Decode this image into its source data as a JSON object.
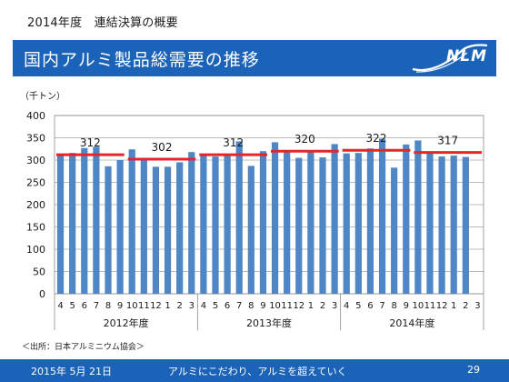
{
  "header": {
    "top_heading": "2014年度　連結決算の概要",
    "title": "国内アルミ製品総需要の推移",
    "logo_text": "NLM"
  },
  "footer": {
    "date": "2015年 5月 21日",
    "slogan": "アルミにこだわり、アルミを超えていく",
    "page_number": "29"
  },
  "source_note": "＜出所：日本アルミニウム協会＞",
  "colors": {
    "title_bar": "#1b63b8",
    "bar": "#4f86c6",
    "avg_line": "#e8242a"
  },
  "chart_data": {
    "type": "bar",
    "title": "",
    "unit_label": "（千トン）",
    "ylim": [
      0,
      400
    ],
    "yticks": [
      0,
      50,
      100,
      150,
      200,
      250,
      300,
      350,
      400
    ],
    "grid": true,
    "categories": [
      "4",
      "5",
      "6",
      "7",
      "8",
      "9",
      "10",
      "11",
      "12",
      "1",
      "2",
      "3",
      "4",
      "5",
      "6",
      "7",
      "8",
      "9",
      "10",
      "11",
      "12",
      "1",
      "2",
      "3",
      "4",
      "5",
      "6",
      "7",
      "8",
      "9",
      "10",
      "11",
      "12",
      "1",
      "2",
      "3"
    ],
    "values": [
      313,
      316,
      327,
      330,
      286,
      300,
      324,
      305,
      285,
      285,
      295,
      318,
      310,
      308,
      313,
      342,
      287,
      320,
      340,
      318,
      305,
      320,
      306,
      336,
      315,
      316,
      326,
      348,
      283,
      335,
      344,
      318,
      308,
      310,
      307,
      0
    ],
    "years": [
      {
        "label": "2012年度",
        "start": 0,
        "end": 11
      },
      {
        "label": "2013年度",
        "start": 12,
        "end": 23
      },
      {
        "label": "2014年度",
        "start": 24,
        "end": 35
      }
    ],
    "averages": [
      {
        "label": "312",
        "value": 312,
        "start": 0,
        "end": 5
      },
      {
        "label": "302",
        "value": 302,
        "start": 6,
        "end": 11
      },
      {
        "label": "312",
        "value": 312,
        "start": 12,
        "end": 17
      },
      {
        "label": "320",
        "value": 320,
        "start": 18,
        "end": 23
      },
      {
        "label": "322",
        "value": 322,
        "start": 24,
        "end": 29
      },
      {
        "label": "317",
        "value": 317,
        "start": 30,
        "end": 35
      }
    ]
  }
}
